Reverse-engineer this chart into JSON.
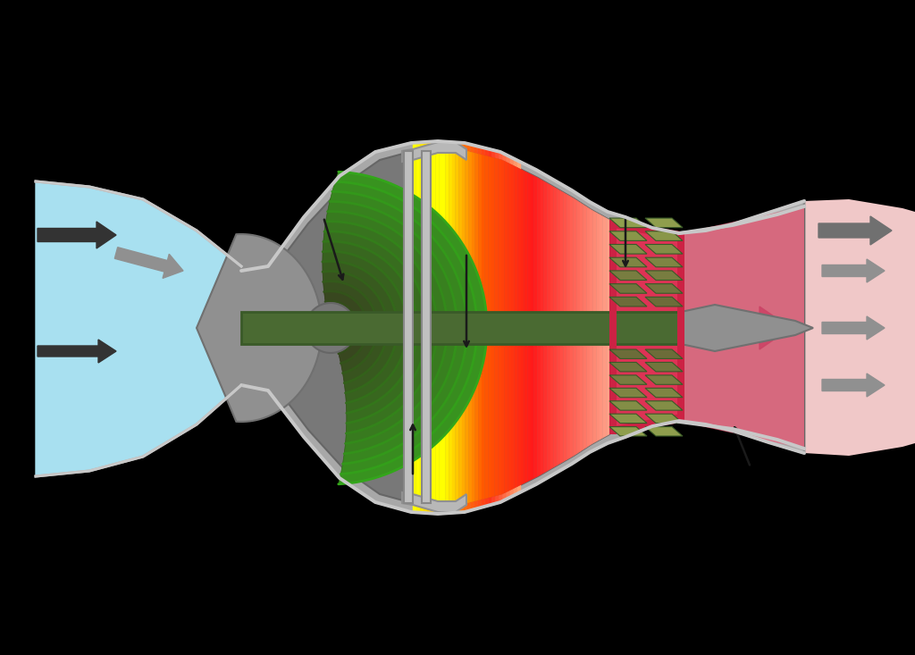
{
  "bg_color": "#000000",
  "casing_gray": "#a8a8a8",
  "casing_outline": "#888888",
  "inner_gray": "#787878",
  "intake_blue": "#a8e0f0",
  "compressor_green_dark": "#3a5a28",
  "compressor_green_mid": "#5a7a40",
  "compressor_green_light": "#8aaa60",
  "shaft_green": "#4a6a32",
  "exhaust_plume_pink": "#f0c8c8",
  "arrow_dark": "#333333",
  "arrow_gray": "#707070",
  "arrow_light": "#909090",
  "turbine_green_light": "#aac880",
  "turbine_green_dark": "#3a5a28",
  "red_casing": "#cc2244",
  "nose_gray": "#909090"
}
